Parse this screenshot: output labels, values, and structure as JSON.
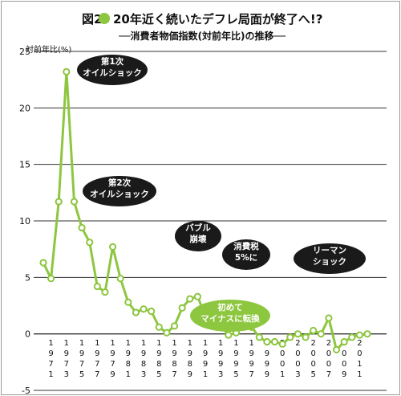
{
  "header": {
    "fig_label": "図2",
    "title": "20年近く続いたデフレ局面が終了へ!?",
    "subtitle": "──消費者物価指数(対前年比)の推移──"
  },
  "colors": {
    "line": "#8dc63f",
    "marker_fill": "#ffffff",
    "grid": "#333333",
    "callout_dark": "#1a1a1a",
    "callout_green": "#8dc63f",
    "title_dot": "#8dc63f"
  },
  "chart_data": {
    "type": "line",
    "ylabel": "対前年比(%)",
    "ylim": [
      -5,
      25
    ],
    "yticks": [
      "25",
      "20",
      "15",
      "10",
      "5",
      "0",
      "-5"
    ],
    "ytick_values": [
      25,
      20,
      15,
      10,
      5,
      0,
      -5
    ],
    "grid": "horizontal",
    "x_tick_labels": [
      "1971",
      "1973",
      "1975",
      "1977",
      "1979",
      "1981",
      "1983",
      "1985",
      "1987",
      "1989",
      "1991",
      "1993",
      "1995",
      "1997",
      "1999",
      "2001",
      "2003",
      "2005",
      "2007",
      "2009",
      "2011"
    ],
    "series": [
      {
        "x": [
          1970,
          1971,
          1972,
          1973,
          1974,
          1975,
          1976,
          1977,
          1978,
          1979,
          1980,
          1981,
          1982,
          1983,
          1984,
          1985,
          1986,
          1987,
          1988,
          1989,
          1990,
          1991,
          1992,
          1993,
          1994,
          1995,
          1996,
          1997,
          1998,
          1999,
          2000,
          2001,
          2002,
          2003,
          2004,
          2005,
          2006,
          2007,
          2008,
          2009,
          2010,
          2011,
          2012
        ],
        "values": [
          6.3,
          4.9,
          11.7,
          23.2,
          11.7,
          9.4,
          8.1,
          4.2,
          3.7,
          7.7,
          4.9,
          2.8,
          1.9,
          2.2,
          2.0,
          0.6,
          0.1,
          0.7,
          2.3,
          3.1,
          3.3,
          1.6,
          1.3,
          0.7,
          -0.1,
          0.1,
          1.8,
          0.6,
          -0.3,
          -0.7,
          -0.7,
          -0.9,
          -0.3,
          0.0,
          -0.3,
          0.3,
          0.0,
          1.4,
          -1.4,
          -0.7,
          -0.3,
          -0.1,
          0.0
        ]
      }
    ],
    "annotations": [
      {
        "lines": [
          "第1次",
          "オイルショック"
        ],
        "style": "dark"
      },
      {
        "lines": [
          "第2次",
          "オイルショック"
        ],
        "style": "dark"
      },
      {
        "lines": [
          "バブル",
          "崩壊"
        ],
        "style": "dark"
      },
      {
        "lines": [
          "消費税",
          "5%に"
        ],
        "style": "dark"
      },
      {
        "lines": [
          "リーマン",
          "ショック"
        ],
        "style": "dark"
      },
      {
        "lines": [
          "初めて",
          "マイナスに転換"
        ],
        "style": "green"
      }
    ]
  }
}
